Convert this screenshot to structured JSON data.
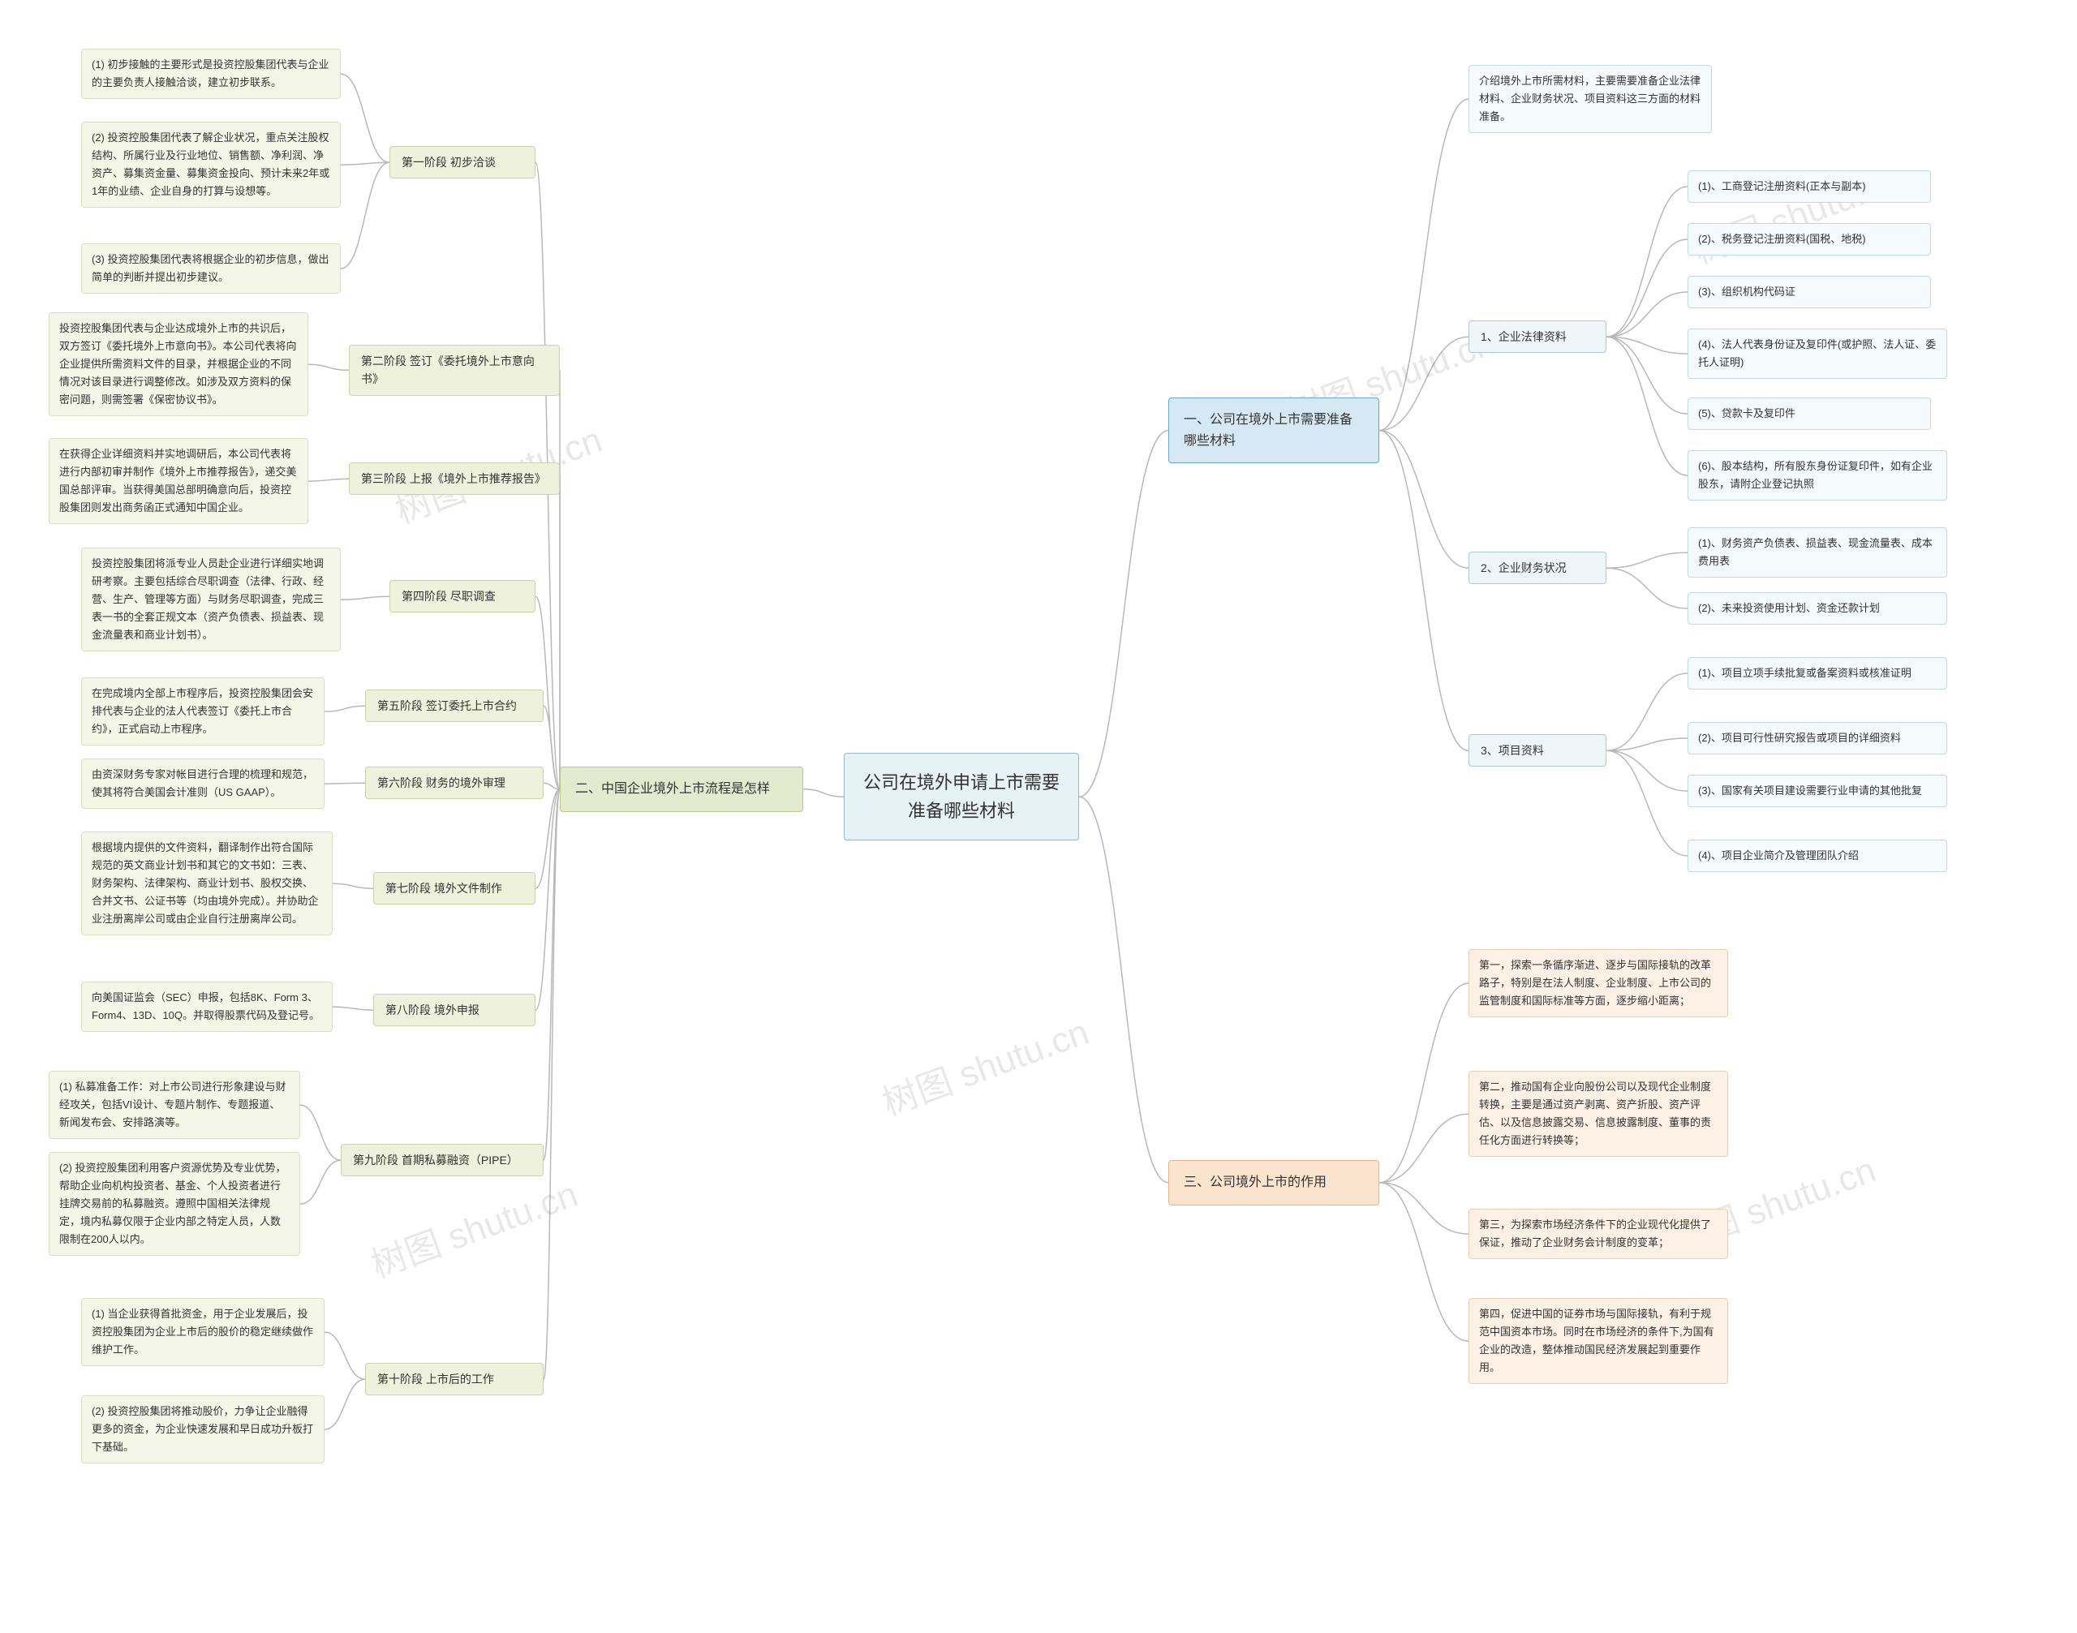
{
  "colors": {
    "center_bg": "#e6f2f6",
    "center_border": "#8fb8c9",
    "b1_bg": "#d6e8f3",
    "b1_border": "#6ca5c7",
    "b1_sub_bg": "#eef6fa",
    "b1_sub_border": "#a8cadb",
    "b1_leaf_bg": "#f5fafc",
    "b1_leaf_border": "#c1d9e4",
    "b2_bg": "#e3eacd",
    "b2_border": "#b9c791",
    "b2_sub_bg": "#eef2dc",
    "b2_sub_border": "#c9d4a5",
    "b2_leaf_bg": "#f4f7e8",
    "b2_leaf_border": "#d7e0bd",
    "b3_bg": "#fbe4ce",
    "b3_border": "#e2b488",
    "b3_leaf_bg": "#fdf1e5",
    "b3_leaf_border": "#edcdaf",
    "line": "#b8b8b8"
  },
  "center": "公司在境外申请上市需要准备哪些材料",
  "watermark": "树图 shutu.cn",
  "b1": {
    "title": "一、公司在境外上市需要准备哪些材料",
    "intro": "介绍境外上市所需材料，主要需要准备企业法律材料、企业财务状况、项目资料这三方面的材料准备。",
    "s1": {
      "title": "1、企业法律资料",
      "items": [
        "(1)、工商登记注册资料(正本与副本)",
        "(2)、税务登记注册资料(国税、地税)",
        "(3)、组织机构代码证",
        "(4)、法人代表身份证及复印件(或护照、法人证、委托人证明)",
        "(5)、贷款卡及复印件",
        "(6)、股本结构，所有股东身份证复印件，如有企业股东，请附企业登记执照"
      ]
    },
    "s2": {
      "title": "2、企业财务状况",
      "items": [
        "(1)、财务资产负债表、损益表、现金流量表、成本费用表",
        "(2)、未来投资使用计划、资金还款计划"
      ]
    },
    "s3": {
      "title": "3、项目资料",
      "items": [
        "(1)、项目立项手续批复或备案资料或核准证明",
        "(2)、项目可行性研究报告或项目的详细资料",
        "(3)、国家有关项目建设需要行业申请的其他批复",
        "(4)、项目企业简介及管理团队介绍"
      ]
    }
  },
  "b2": {
    "title": "二、中国企业境外上市流程是怎样",
    "stages": [
      {
        "label": "第一阶段 初步洽谈",
        "items": [
          "(1) 初步接触的主要形式是投资控股集团代表与企业的主要负责人接触洽谈，建立初步联系。",
          "(2) 投资控股集团代表了解企业状况，重点关注股权结构、所属行业及行业地位、销售额、净利润、净资产、募集资金量、募集资金投向、预计未来2年或1年的业绩、企业自身的打算与设想等。",
          "(3) 投资控股集团代表将根据企业的初步信息，做出简单的判断并提出初步建议。"
        ]
      },
      {
        "label": "第二阶段 签订《委托境外上市意向书》",
        "items": [
          "投资控股集团代表与企业达成境外上市的共识后，双方签订《委托境外上市意向书》。本公司代表将向企业提供所需资料文件的目录，并根据企业的不同情况对该目录进行调整修改。如涉及双方资料的保密问题，则需签署《保密协议书》。"
        ]
      },
      {
        "label": "第三阶段 上报《境外上市推荐报告》",
        "items": [
          "在获得企业详细资料并实地调研后，本公司代表将进行内部初审并制作《境外上市推荐报告》，递交美国总部评审。当获得美国总部明确意向后，投资控股集团则发出商务函正式通知中国企业。"
        ]
      },
      {
        "label": "第四阶段 尽职调查",
        "items": [
          "投资控股集团将派专业人员赴企业进行详细实地调研考察。主要包括综合尽职调查（法律、行政、经营、生产、管理等方面）与财务尽职调查，完成三表一书的全套正规文本（资产负债表、损益表、现金流量表和商业计划书）。"
        ]
      },
      {
        "label": "第五阶段 签订委托上市合约",
        "items": [
          "在完成境内全部上市程序后，投资控股集团会安排代表与企业的法人代表签订《委托上市合约》，正式启动上市程序。"
        ]
      },
      {
        "label": "第六阶段 财务的境外审理",
        "items": [
          "由资深财务专家对帐目进行合理的梳理和规范，使其将符合美国会计准则（US GAAP）。"
        ]
      },
      {
        "label": "第七阶段 境外文件制作",
        "items": [
          "根据境内提供的文件资料，翻译制作出符合国际规范的英文商业计划书和其它的文书如：三表、财务架构、法律架构、商业计划书、股权交换、合并文书、公证书等（均由境外完成）。并协助企业注册离岸公司或由企业自行注册离岸公司。"
        ]
      },
      {
        "label": "第八阶段 境外申报",
        "items": [
          "向美国证监会（SEC）申报，包括8K、Form 3、Form4、13D、10Q。并取得股票代码及登记号。"
        ]
      },
      {
        "label": "第九阶段 首期私募融资（PIPE）",
        "items": [
          "(1) 私募准备工作：对上市公司进行形象建设与财经攻关，包括VI设计、专题片制作、专题报道、新闻发布会、安排路演等。",
          "(2) 投资控股集团利用客户资源优势及专业优势，帮助企业向机构投资者、基金、个人投资者进行挂牌交易前的私募融资。遵照中国相关法律规定，境内私募仅限于企业内部之特定人员，人数限制在200人以内。"
        ]
      },
      {
        "label": "第十阶段 上市后的工作",
        "items": [
          "(1) 当企业获得首批资金，用于企业发展后，投资控股集团为企业上市后的股价的稳定继续做作维护工作。",
          "(2) 投资控股集团将推动股价，力争让企业融得更多的资金，为企业快速发展和早日成功升板打下基础。"
        ]
      }
    ]
  },
  "b3": {
    "title": "三、公司境外上市的作用",
    "items": [
      "第一，探索一条循序渐进、逐步与国际接轨的改革路子，特别是在法人制度、企业制度、上市公司的监管制度和国际标准等方面，逐步缩小距离；",
      "第二，推动国有企业向股份公司以及现代企业制度转换，主要是通过资产剥离、资产折股、资产评估、以及信息披露交易、信息披露制度、董事的责任化方面进行转换等；",
      "第三，为探索市场经济条件下的企业现代化提供了保证，推动了企业财务会计制度的变革；",
      "第四，促进中国的证券市场与国际接轨，有利于规范中国资本市场。同时在市场经济的条件下,为国有企业的改造，整体推动国民经济发展起到重要作用。"
    ]
  }
}
